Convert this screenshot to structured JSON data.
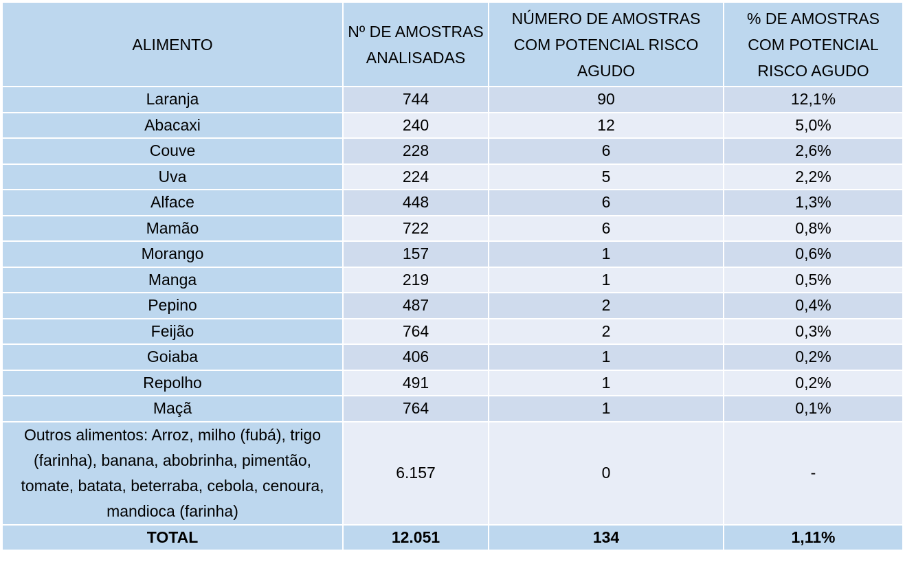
{
  "headers": {
    "alimento": "ALIMENTO",
    "amostras": "Nº DE AMOSTRAS ANALISADAS",
    "numero_risco": "NÚMERO DE AMOSTRAS COM POTENCIAL RISCO AGUDO",
    "percent_risco": "% DE AMOSTRAS COM POTENCIAL RISCO AGUDO"
  },
  "rows": [
    {
      "alimento": "Laranja",
      "amostras": "744",
      "risco": "90",
      "percent": "12,1%"
    },
    {
      "alimento": "Abacaxi",
      "amostras": "240",
      "risco": "12",
      "percent": "5,0%"
    },
    {
      "alimento": "Couve",
      "amostras": "228",
      "risco": "6",
      "percent": "2,6%"
    },
    {
      "alimento": "Uva",
      "amostras": "224",
      "risco": "5",
      "percent": "2,2%"
    },
    {
      "alimento": "Alface",
      "amostras": "448",
      "risco": "6",
      "percent": "1,3%"
    },
    {
      "alimento": "Mamão",
      "amostras": "722",
      "risco": "6",
      "percent": "0,8%"
    },
    {
      "alimento": "Morango",
      "amostras": "157",
      "risco": "1",
      "percent": "0,6%"
    },
    {
      "alimento": "Manga",
      "amostras": "219",
      "risco": "1",
      "percent": "0,5%"
    },
    {
      "alimento": "Pepino",
      "amostras": "487",
      "risco": "2",
      "percent": "0,4%"
    },
    {
      "alimento": "Feijão",
      "amostras": "764",
      "risco": "2",
      "percent": "0,3%"
    },
    {
      "alimento": "Goiaba",
      "amostras": "406",
      "risco": "1",
      "percent": "0,2%"
    },
    {
      "alimento": "Repolho",
      "amostras": "491",
      "risco": "1",
      "percent": "0,2%"
    },
    {
      "alimento": "Maçã",
      "amostras": "764",
      "risco": "1",
      "percent": "0,1%"
    }
  ],
  "outros": {
    "alimento": "Outros alimentos: Arroz, milho (fubá), trigo (farinha), banana, abobrinha, pimentão, tomate, batata, beterraba, cebola, cenoura, mandioca (farinha)",
    "amostras": "6.157",
    "risco": "0",
    "percent": "-"
  },
  "total": {
    "label": "TOTAL",
    "amostras": "12.051",
    "risco": "134",
    "percent": "1,11%"
  }
}
